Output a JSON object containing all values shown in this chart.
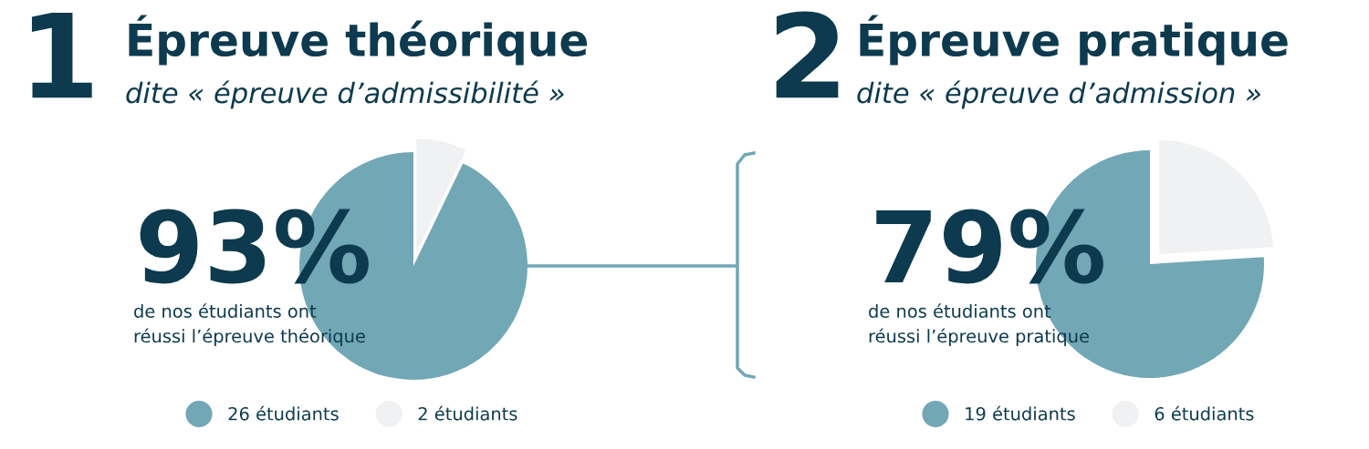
{
  "chart_data": [
    {
      "type": "pie",
      "title": "Épreuve théorique",
      "subtitle": "dite « épreuve d’admissibilité »",
      "categories": [
        "26 étudiants",
        "2 étudiants"
      ],
      "values": [
        26,
        2
      ],
      "colors": [
        "#72a7b6",
        "#f0f1f2"
      ],
      "legend": "bottom",
      "annotations": [
        "1",
        "93%",
        "de nos étudiants ont\nréussi l’épreuve théorique"
      ]
    },
    {
      "type": "pie",
      "title": "Épreuve pratique",
      "subtitle": "dite « épreuve d’admission »",
      "categories": [
        "19 étudiants",
        "6 étudiants"
      ],
      "values": [
        19,
        6
      ],
      "colors": [
        "#72a7b6",
        "#f0f1f2"
      ],
      "legend": "bottom",
      "annotations": [
        "2",
        "79%",
        "de nos étudiants ont\nréussi l’épreuve pratique"
      ]
    }
  ]
}
